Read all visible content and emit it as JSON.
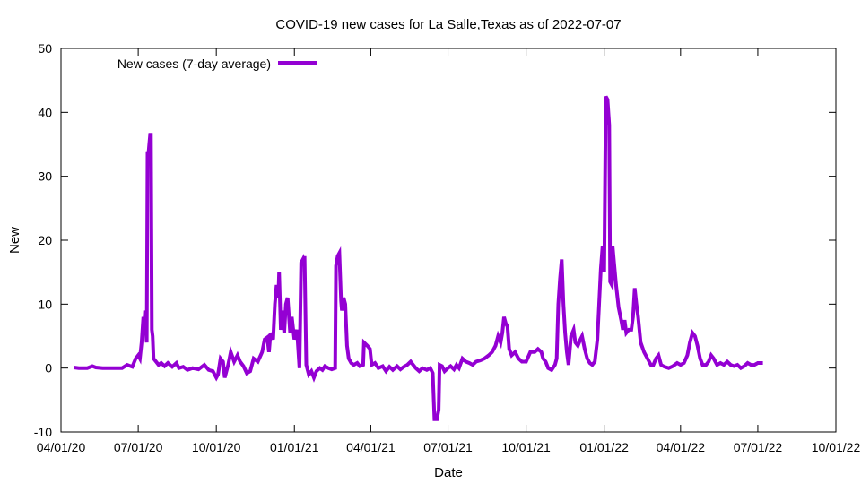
{
  "chart_data": {
    "type": "line",
    "title": "COVID-19 new cases for La Salle,Texas as of 2022-07-07",
    "xlabel": "Date",
    "ylabel": "New",
    "ylim": [
      -10,
      50
    ],
    "yticks": [
      -10,
      0,
      10,
      20,
      30,
      40,
      50
    ],
    "xlim": [
      "2020-04-01",
      "2022-10-01"
    ],
    "xticks": [
      {
        "date": "2020-04-01",
        "label": "04/01/20"
      },
      {
        "date": "2020-07-01",
        "label": "07/01/20"
      },
      {
        "date": "2020-10-01",
        "label": "10/01/20"
      },
      {
        "date": "2021-01-01",
        "label": "01/01/21"
      },
      {
        "date": "2021-04-01",
        "label": "04/01/21"
      },
      {
        "date": "2021-07-01",
        "label": "07/01/21"
      },
      {
        "date": "2021-10-01",
        "label": "10/01/21"
      },
      {
        "date": "2022-01-01",
        "label": "01/01/22"
      },
      {
        "date": "2022-04-01",
        "label": "04/01/22"
      },
      {
        "date": "2022-07-01",
        "label": "07/01/22"
      },
      {
        "date": "2022-10-01",
        "label": "10/01/22"
      }
    ],
    "grid": false,
    "legend_position": "top-left",
    "series": [
      {
        "name": "New cases (7-day average)",
        "color": "#9400d3",
        "points": [
          [
            "2020-04-16",
            0.1
          ],
          [
            "2020-04-22",
            0.0
          ],
          [
            "2020-05-02",
            0.0
          ],
          [
            "2020-05-08",
            0.3
          ],
          [
            "2020-05-12",
            0.1
          ],
          [
            "2020-05-20",
            0.0
          ],
          [
            "2020-06-05",
            0.0
          ],
          [
            "2020-06-12",
            0.0
          ],
          [
            "2020-06-18",
            0.5
          ],
          [
            "2020-06-24",
            0.2
          ],
          [
            "2020-06-28",
            1.5
          ],
          [
            "2020-07-01",
            2.0
          ],
          [
            "2020-07-03",
            1.5
          ],
          [
            "2020-07-05",
            4.0
          ],
          [
            "2020-07-07",
            8.0
          ],
          [
            "2020-07-08",
            6.5
          ],
          [
            "2020-07-09",
            9.0
          ],
          [
            "2020-07-10",
            6.0
          ],
          [
            "2020-07-11",
            4.0
          ],
          [
            "2020-07-12",
            33.5
          ],
          [
            "2020-07-13",
            33.5
          ],
          [
            "2020-07-14",
            35.0
          ],
          [
            "2020-07-15",
            36.5
          ],
          [
            "2020-07-16",
            36.5
          ],
          [
            "2020-07-17",
            6.0
          ],
          [
            "2020-07-18",
            5.0
          ],
          [
            "2020-07-19",
            1.5
          ],
          [
            "2020-07-22",
            1.0
          ],
          [
            "2020-07-25",
            0.5
          ],
          [
            "2020-07-28",
            0.8
          ],
          [
            "2020-08-01",
            0.3
          ],
          [
            "2020-08-05",
            0.8
          ],
          [
            "2020-08-10",
            0.2
          ],
          [
            "2020-08-15",
            0.8
          ],
          [
            "2020-08-18",
            0.0
          ],
          [
            "2020-08-23",
            0.2
          ],
          [
            "2020-08-28",
            -0.3
          ],
          [
            "2020-09-03",
            0.0
          ],
          [
            "2020-09-10",
            -0.2
          ],
          [
            "2020-09-17",
            0.5
          ],
          [
            "2020-09-22",
            -0.3
          ],
          [
            "2020-09-27",
            -0.5
          ],
          [
            "2020-10-01",
            -1.5
          ],
          [
            "2020-10-03",
            -1.0
          ],
          [
            "2020-10-06",
            1.5
          ],
          [
            "2020-10-09",
            1.0
          ],
          [
            "2020-10-11",
            -1.5
          ],
          [
            "2020-10-15",
            0.5
          ],
          [
            "2020-10-18",
            2.5
          ],
          [
            "2020-10-22",
            1.0
          ],
          [
            "2020-10-26",
            2.0
          ],
          [
            "2020-10-29",
            1.0
          ],
          [
            "2020-11-02",
            0.3
          ],
          [
            "2020-11-06",
            -0.8
          ],
          [
            "2020-11-10",
            -0.5
          ],
          [
            "2020-11-14",
            1.5
          ],
          [
            "2020-11-19",
            1.0
          ],
          [
            "2020-11-24",
            2.5
          ],
          [
            "2020-11-27",
            4.5
          ],
          [
            "2020-11-30",
            4.8
          ],
          [
            "2020-12-02",
            2.5
          ],
          [
            "2020-12-04",
            5.5
          ],
          [
            "2020-12-07",
            4.5
          ],
          [
            "2020-12-09",
            10.0
          ],
          [
            "2020-12-11",
            13.0
          ],
          [
            "2020-12-13",
            11.0
          ],
          [
            "2020-12-14",
            15.0
          ],
          [
            "2020-12-16",
            6.0
          ],
          [
            "2020-12-18",
            9.0
          ],
          [
            "2020-12-20",
            5.5
          ],
          [
            "2020-12-22",
            10.0
          ],
          [
            "2020-12-24",
            11.0
          ],
          [
            "2020-12-27",
            5.5
          ],
          [
            "2020-12-29",
            8.0
          ],
          [
            "2021-01-01",
            4.5
          ],
          [
            "2021-01-04",
            6.0
          ],
          [
            "2021-01-07",
            0.0
          ],
          [
            "2021-01-09",
            16.5
          ],
          [
            "2021-01-11",
            17.0
          ],
          [
            "2021-01-12",
            16.0
          ],
          [
            "2021-01-13",
            17.5
          ],
          [
            "2021-01-15",
            0.5
          ],
          [
            "2021-01-18",
            -1.0
          ],
          [
            "2021-01-21",
            -0.5
          ],
          [
            "2021-01-24",
            -1.5
          ],
          [
            "2021-01-27",
            -0.5
          ],
          [
            "2021-01-31",
            0.0
          ],
          [
            "2021-02-03",
            -0.3
          ],
          [
            "2021-02-06",
            0.3
          ],
          [
            "2021-02-10",
            0.0
          ],
          [
            "2021-02-14",
            -0.2
          ],
          [
            "2021-02-18",
            0.0
          ],
          [
            "2021-02-19",
            16.0
          ],
          [
            "2021-02-21",
            17.5
          ],
          [
            "2021-02-23",
            18.0
          ],
          [
            "2021-02-25",
            10.5
          ],
          [
            "2021-02-26",
            9.0
          ],
          [
            "2021-02-28",
            11.0
          ],
          [
            "2021-03-02",
            10.0
          ],
          [
            "2021-03-04",
            3.5
          ],
          [
            "2021-03-06",
            1.5
          ],
          [
            "2021-03-09",
            0.8
          ],
          [
            "2021-03-12",
            0.5
          ],
          [
            "2021-03-16",
            0.8
          ],
          [
            "2021-03-19",
            0.3
          ],
          [
            "2021-03-23",
            0.5
          ],
          [
            "2021-03-24",
            4.0
          ],
          [
            "2021-03-28",
            3.5
          ],
          [
            "2021-03-31",
            3.0
          ],
          [
            "2021-04-02",
            0.5
          ],
          [
            "2021-04-06",
            0.8
          ],
          [
            "2021-04-10",
            0.0
          ],
          [
            "2021-04-15",
            0.3
          ],
          [
            "2021-04-19",
            -0.5
          ],
          [
            "2021-04-23",
            0.2
          ],
          [
            "2021-04-27",
            -0.3
          ],
          [
            "2021-05-02",
            0.3
          ],
          [
            "2021-05-06",
            -0.2
          ],
          [
            "2021-05-10",
            0.2
          ],
          [
            "2021-05-14",
            0.5
          ],
          [
            "2021-05-18",
            1.0
          ],
          [
            "2021-05-21",
            0.5
          ],
          [
            "2021-05-24",
            0.0
          ],
          [
            "2021-05-28",
            -0.5
          ],
          [
            "2021-06-01",
            0.0
          ],
          [
            "2021-06-06",
            -0.3
          ],
          [
            "2021-06-10",
            0.0
          ],
          [
            "2021-06-13",
            -0.8
          ],
          [
            "2021-06-15",
            -8.0
          ],
          [
            "2021-06-18",
            -8.0
          ],
          [
            "2021-06-20",
            -6.5
          ],
          [
            "2021-06-21",
            0.5
          ],
          [
            "2021-06-24",
            0.3
          ],
          [
            "2021-06-27",
            -0.5
          ],
          [
            "2021-07-01",
            0.0
          ],
          [
            "2021-07-04",
            0.3
          ],
          [
            "2021-07-08",
            -0.2
          ],
          [
            "2021-07-11",
            0.5
          ],
          [
            "2021-07-14",
            0.0
          ],
          [
            "2021-07-18",
            1.5
          ],
          [
            "2021-07-22",
            1.0
          ],
          [
            "2021-07-26",
            0.8
          ],
          [
            "2021-07-30",
            0.5
          ],
          [
            "2021-08-03",
            1.0
          ],
          [
            "2021-08-08",
            1.2
          ],
          [
            "2021-08-13",
            1.5
          ],
          [
            "2021-08-18",
            2.0
          ],
          [
            "2021-08-22",
            2.5
          ],
          [
            "2021-08-26",
            3.5
          ],
          [
            "2021-08-29",
            5.0
          ],
          [
            "2021-09-01",
            4.0
          ],
          [
            "2021-09-03",
            5.5
          ],
          [
            "2021-09-05",
            8.0
          ],
          [
            "2021-09-07",
            7.0
          ],
          [
            "2021-09-09",
            6.5
          ],
          [
            "2021-09-11",
            3.0
          ],
          [
            "2021-09-14",
            2.0
          ],
          [
            "2021-09-18",
            2.5
          ],
          [
            "2021-09-22",
            1.5
          ],
          [
            "2021-09-26",
            1.0
          ],
          [
            "2021-10-01",
            1.0
          ],
          [
            "2021-10-06",
            2.5
          ],
          [
            "2021-10-11",
            2.5
          ],
          [
            "2021-10-15",
            3.0
          ],
          [
            "2021-10-19",
            2.5
          ],
          [
            "2021-10-21",
            1.5
          ],
          [
            "2021-10-24",
            1.0
          ],
          [
            "2021-10-27",
            0.0
          ],
          [
            "2021-10-31",
            -0.3
          ],
          [
            "2021-11-04",
            0.5
          ],
          [
            "2021-11-06",
            1.5
          ],
          [
            "2021-11-08",
            10.0
          ],
          [
            "2021-11-10",
            14.0
          ],
          [
            "2021-11-12",
            17.0
          ],
          [
            "2021-11-14",
            10.0
          ],
          [
            "2021-11-16",
            5.5
          ],
          [
            "2021-11-18",
            2.5
          ],
          [
            "2021-11-20",
            0.5
          ],
          [
            "2021-11-23",
            5.0
          ],
          [
            "2021-11-26",
            6.0
          ],
          [
            "2021-11-28",
            4.0
          ],
          [
            "2021-12-01",
            3.5
          ],
          [
            "2021-12-04",
            4.5
          ],
          [
            "2021-12-06",
            5.0
          ],
          [
            "2021-12-09",
            3.0
          ],
          [
            "2021-12-12",
            1.5
          ],
          [
            "2021-12-15",
            0.8
          ],
          [
            "2021-12-18",
            0.5
          ],
          [
            "2021-12-21",
            1.0
          ],
          [
            "2021-12-24",
            4.5
          ],
          [
            "2021-12-26",
            10.0
          ],
          [
            "2021-12-28",
            15.5
          ],
          [
            "2021-12-30",
            19.0
          ],
          [
            "2022-01-01",
            15.0
          ],
          [
            "2022-01-03",
            42.5
          ],
          [
            "2022-01-05",
            42.0
          ],
          [
            "2022-01-07",
            38.0
          ],
          [
            "2022-01-08",
            13.5
          ],
          [
            "2022-01-10",
            13.0
          ],
          [
            "2022-01-11",
            19.0
          ],
          [
            "2022-01-13",
            16.0
          ],
          [
            "2022-01-15",
            13.0
          ],
          [
            "2022-01-18",
            9.5
          ],
          [
            "2022-01-21",
            7.5
          ],
          [
            "2022-01-23",
            6.0
          ],
          [
            "2022-01-25",
            7.5
          ],
          [
            "2022-01-27",
            5.5
          ],
          [
            "2022-01-30",
            6.0
          ],
          [
            "2022-02-02",
            6.0
          ],
          [
            "2022-02-04",
            8.0
          ],
          [
            "2022-02-06",
            12.5
          ],
          [
            "2022-02-08",
            10.0
          ],
          [
            "2022-02-10",
            8.0
          ],
          [
            "2022-02-13",
            4.0
          ],
          [
            "2022-02-17",
            2.5
          ],
          [
            "2022-02-21",
            1.5
          ],
          [
            "2022-02-25",
            0.5
          ],
          [
            "2022-02-28",
            0.5
          ],
          [
            "2022-03-03",
            1.5
          ],
          [
            "2022-03-06",
            2.0
          ],
          [
            "2022-03-09",
            0.5
          ],
          [
            "2022-03-13",
            0.2
          ],
          [
            "2022-03-18",
            0.0
          ],
          [
            "2022-03-23",
            0.3
          ],
          [
            "2022-03-28",
            0.8
          ],
          [
            "2022-04-01",
            0.5
          ],
          [
            "2022-04-05",
            0.8
          ],
          [
            "2022-04-09",
            2.0
          ],
          [
            "2022-04-12",
            4.0
          ],
          [
            "2022-04-15",
            5.5
          ],
          [
            "2022-04-18",
            5.0
          ],
          [
            "2022-04-21",
            3.5
          ],
          [
            "2022-04-24",
            1.5
          ],
          [
            "2022-04-27",
            0.5
          ],
          [
            "2022-05-01",
            0.5
          ],
          [
            "2022-05-04",
            1.0
          ],
          [
            "2022-05-07",
            2.0
          ],
          [
            "2022-05-10",
            1.5
          ],
          [
            "2022-05-14",
            0.5
          ],
          [
            "2022-05-18",
            0.8
          ],
          [
            "2022-05-22",
            0.5
          ],
          [
            "2022-05-26",
            1.0
          ],
          [
            "2022-05-30",
            0.5
          ],
          [
            "2022-06-03",
            0.3
          ],
          [
            "2022-06-07",
            0.5
          ],
          [
            "2022-06-11",
            0.0
          ],
          [
            "2022-06-15",
            0.3
          ],
          [
            "2022-06-19",
            0.8
          ],
          [
            "2022-06-23",
            0.5
          ],
          [
            "2022-06-27",
            0.5
          ],
          [
            "2022-07-01",
            0.8
          ],
          [
            "2022-07-07",
            0.8
          ]
        ]
      }
    ]
  }
}
